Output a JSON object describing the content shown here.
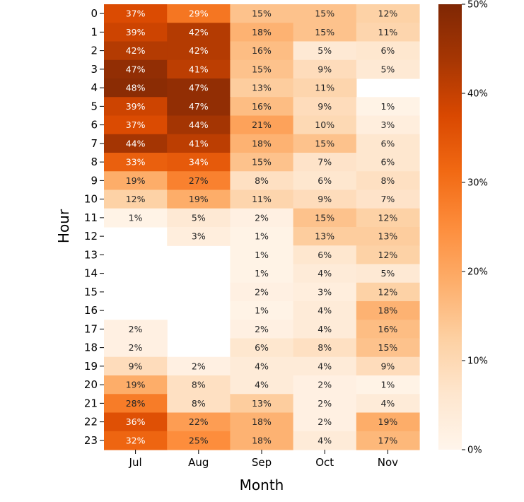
{
  "chart_data": {
    "type": "heatmap",
    "xlabel": "Month",
    "ylabel": "Hour",
    "columns": [
      "Jul",
      "Aug",
      "Sep",
      "Oct",
      "Nov"
    ],
    "rows": [
      "0",
      "1",
      "2",
      "3",
      "4",
      "5",
      "6",
      "7",
      "8",
      "9",
      "10",
      "11",
      "12",
      "13",
      "14",
      "15",
      "16",
      "17",
      "18",
      "19",
      "20",
      "21",
      "22",
      "23"
    ],
    "values": [
      [
        37,
        29,
        15,
        15,
        12
      ],
      [
        39,
        42,
        18,
        15,
        11
      ],
      [
        42,
        42,
        16,
        5,
        6
      ],
      [
        47,
        41,
        15,
        9,
        5
      ],
      [
        48,
        47,
        13,
        11,
        null
      ],
      [
        39,
        47,
        16,
        9,
        1
      ],
      [
        37,
        44,
        21,
        10,
        3
      ],
      [
        44,
        41,
        18,
        15,
        6
      ],
      [
        33,
        34,
        15,
        7,
        6
      ],
      [
        19,
        27,
        8,
        6,
        8
      ],
      [
        12,
        19,
        11,
        9,
        7
      ],
      [
        1,
        5,
        2,
        15,
        12
      ],
      [
        null,
        3,
        1,
        13,
        13
      ],
      [
        null,
        null,
        1,
        6,
        12
      ],
      [
        null,
        null,
        1,
        4,
        5
      ],
      [
        null,
        null,
        2,
        3,
        12
      ],
      [
        null,
        null,
        1,
        4,
        18
      ],
      [
        2,
        null,
        2,
        4,
        16
      ],
      [
        2,
        null,
        6,
        8,
        15
      ],
      [
        9,
        2,
        4,
        4,
        9
      ],
      [
        19,
        8,
        4,
        2,
        1
      ],
      [
        28,
        8,
        13,
        2,
        4
      ],
      [
        36,
        22,
        18,
        2,
        19
      ],
      [
        32,
        25,
        18,
        4,
        17
      ]
    ],
    "value_suffix": "%",
    "colorbar": {
      "min": 0,
      "max": 50,
      "ticks": [
        "0%",
        "10%",
        "20%",
        "30%",
        "40%",
        "50%"
      ],
      "colormap": "Oranges",
      "colors": [
        "#fff5eb",
        "#fee6ce",
        "#fdd0a2",
        "#fdae6b",
        "#fd8d3c",
        "#f16913",
        "#d94801",
        "#a63603",
        "#7f2704"
      ]
    }
  }
}
